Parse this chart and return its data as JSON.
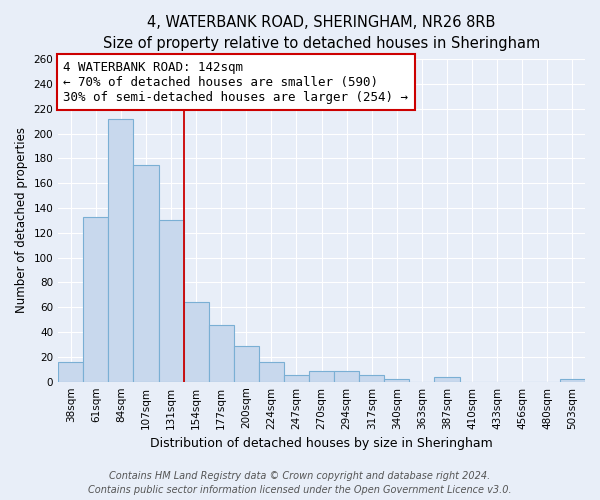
{
  "title": "4, WATERBANK ROAD, SHERINGHAM, NR26 8RB",
  "subtitle": "Size of property relative to detached houses in Sheringham",
  "xlabel": "Distribution of detached houses by size in Sheringham",
  "ylabel": "Number of detached properties",
  "bar_labels": [
    "38sqm",
    "61sqm",
    "84sqm",
    "107sqm",
    "131sqm",
    "154sqm",
    "177sqm",
    "200sqm",
    "224sqm",
    "247sqm",
    "270sqm",
    "294sqm",
    "317sqm",
    "340sqm",
    "363sqm",
    "387sqm",
    "410sqm",
    "433sqm",
    "456sqm",
    "480sqm",
    "503sqm"
  ],
  "bar_values": [
    16,
    133,
    212,
    175,
    130,
    64,
    46,
    29,
    16,
    5,
    9,
    9,
    5,
    2,
    0,
    4,
    0,
    0,
    0,
    0,
    2
  ],
  "bar_color": "#c8d8ed",
  "bar_edge_color": "#7aafd4",
  "annotation_text_line1": "4 WATERBANK ROAD: 142sqm",
  "annotation_text_line2": "← 70% of detached houses are smaller (590)",
  "annotation_text_line3": "30% of semi-detached houses are larger (254) →",
  "annotation_box_facecolor": "#ffffff",
  "annotation_border_color": "#cc0000",
  "vline_color": "#cc0000",
  "ylim": [
    0,
    260
  ],
  "yticks": [
    0,
    20,
    40,
    60,
    80,
    100,
    120,
    140,
    160,
    180,
    200,
    220,
    240,
    260
  ],
  "footer_line1": "Contains HM Land Registry data © Crown copyright and database right 2024.",
  "footer_line2": "Contains public sector information licensed under the Open Government Licence v3.0.",
  "background_color": "#e8eef8",
  "plot_background_color": "#e8eef8",
  "grid_color": "#ffffff",
  "title_fontsize": 10.5,
  "subtitle_fontsize": 9.5,
  "xlabel_fontsize": 9,
  "ylabel_fontsize": 8.5,
  "tick_fontsize": 7.5,
  "footer_fontsize": 7,
  "annotation_fontsize": 9
}
